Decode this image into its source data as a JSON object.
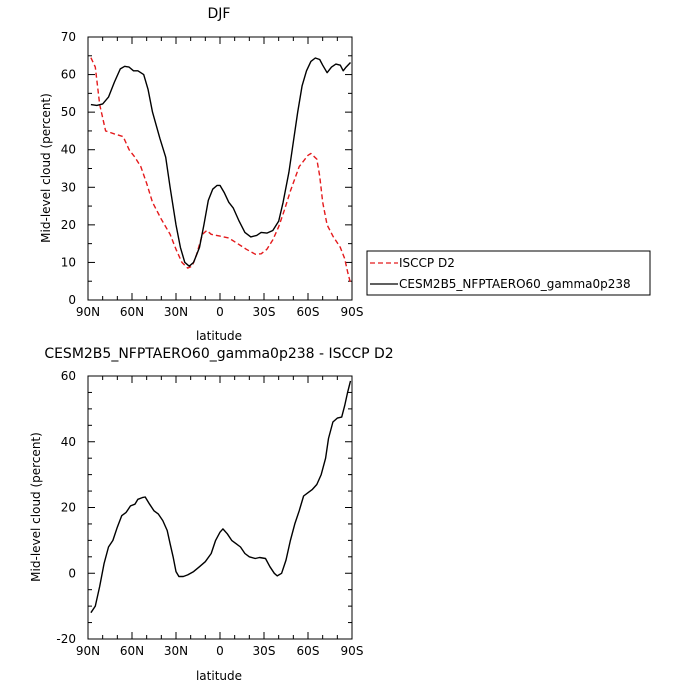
{
  "chart_data": [
    {
      "type": "line",
      "title": "DJF",
      "xlabel": "latitude",
      "ylabel": "Mid-level cloud (percent)",
      "xlim": [
        90,
        -90
      ],
      "ylim": [
        0,
        70
      ],
      "x_ticks": [
        {
          "value": 90,
          "label": "90N"
        },
        {
          "value": 60,
          "label": "60N"
        },
        {
          "value": 30,
          "label": "30N"
        },
        {
          "value": 0,
          "label": "0"
        },
        {
          "value": -30,
          "label": "30S"
        },
        {
          "value": -60,
          "label": "60S"
        },
        {
          "value": -90,
          "label": "90S"
        }
      ],
      "y_ticks": [
        0,
        10,
        20,
        30,
        40,
        50,
        60,
        70
      ],
      "legend_position": "right",
      "series": [
        {
          "name": "ISCCP D2",
          "color": "#e41a1c",
          "dash": "dashed",
          "points": [
            [
              88,
              64.5
            ],
            [
              85,
              62
            ],
            [
              82,
              52
            ],
            [
              78,
              45
            ],
            [
              72,
              44.2
            ],
            [
              66,
              43.5
            ],
            [
              62,
              40
            ],
            [
              58,
              38
            ],
            [
              54,
              35.5
            ],
            [
              50,
              31
            ],
            [
              46,
              26
            ],
            [
              40,
              21.5
            ],
            [
              34,
              17.5
            ],
            [
              30,
              13.5
            ],
            [
              26,
              10
            ],
            [
              22,
              8.5
            ],
            [
              19,
              9
            ],
            [
              16,
              12
            ],
            [
              12,
              17.5
            ],
            [
              9,
              18.5
            ],
            [
              6,
              17.5
            ],
            [
              0,
              17
            ],
            [
              -6,
              16.5
            ],
            [
              -12,
              15
            ],
            [
              -18,
              13.5
            ],
            [
              -24,
              12.2
            ],
            [
              -28,
              12.3
            ],
            [
              -32,
              13.5
            ],
            [
              -36,
              16
            ],
            [
              -40,
              19.5
            ],
            [
              -44,
              24
            ],
            [
              -48,
              29
            ],
            [
              -54,
              35.5
            ],
            [
              -60,
              38.5
            ],
            [
              -62,
              39
            ],
            [
              -66,
              37.5
            ],
            [
              -68,
              33
            ],
            [
              -70,
              26
            ],
            [
              -73,
              20
            ],
            [
              -77,
              17
            ],
            [
              -82,
              14
            ],
            [
              -85,
              11
            ],
            [
              -87,
              7.5
            ],
            [
              -89,
              4.5
            ]
          ]
        },
        {
          "name": "CESM2B5_NFPTAERO60_gamma0p238",
          "color": "#000000",
          "dash": "solid",
          "points": [
            [
              88,
              52
            ],
            [
              84,
              51.8
            ],
            [
              80,
              52.2
            ],
            [
              76,
              54
            ],
            [
              72,
              58
            ],
            [
              68,
              61.5
            ],
            [
              65,
              62.2
            ],
            [
              62,
              62
            ],
            [
              59,
              61
            ],
            [
              56,
              61
            ],
            [
              52,
              60
            ],
            [
              49,
              56
            ],
            [
              46,
              50
            ],
            [
              41,
              43
            ],
            [
              37,
              38
            ],
            [
              34,
              30
            ],
            [
              30,
              20
            ],
            [
              27,
              14
            ],
            [
              24,
              10
            ],
            [
              21,
              9
            ],
            [
              18,
              10
            ],
            [
              14,
              14
            ],
            [
              11,
              20
            ],
            [
              8,
              26.5
            ],
            [
              5,
              29.5
            ],
            [
              2,
              30.5
            ],
            [
              0,
              30.5
            ],
            [
              -3,
              28.5
            ],
            [
              -6,
              26
            ],
            [
              -9,
              24.5
            ],
            [
              -13,
              21
            ],
            [
              -17,
              18
            ],
            [
              -21,
              16.8
            ],
            [
              -25,
              17.2
            ],
            [
              -28,
              18
            ],
            [
              -32,
              17.8
            ],
            [
              -36,
              18.5
            ],
            [
              -40,
              21
            ],
            [
              -43,
              26
            ],
            [
              -47,
              34
            ],
            [
              -50,
              42
            ],
            [
              -53,
              50
            ],
            [
              -56,
              57
            ],
            [
              -59,
              61
            ],
            [
              -62,
              63.5
            ],
            [
              -65,
              64.4
            ],
            [
              -68,
              64
            ],
            [
              -70,
              62.5
            ],
            [
              -73,
              60.5
            ],
            [
              -76,
              62
            ],
            [
              -79,
              62.8
            ],
            [
              -82,
              62.5
            ],
            [
              -84,
              61
            ],
            [
              -86,
              62
            ],
            [
              -89,
              63.2
            ]
          ]
        }
      ]
    },
    {
      "type": "line",
      "title": "CESM2B5_NFPTAERO60_gamma0p238 - ISCCP D2",
      "xlabel": "latitude",
      "ylabel": "Mid-level cloud (percent)",
      "xlim": [
        90,
        -90
      ],
      "ylim": [
        -20,
        60
      ],
      "x_ticks": [
        {
          "value": 90,
          "label": "90N"
        },
        {
          "value": 60,
          "label": "60N"
        },
        {
          "value": 30,
          "label": "30N"
        },
        {
          "value": 0,
          "label": "0"
        },
        {
          "value": -30,
          "label": "30S"
        },
        {
          "value": -60,
          "label": "60S"
        },
        {
          "value": -90,
          "label": "90S"
        }
      ],
      "y_ticks": [
        -20,
        0,
        20,
        40,
        60
      ],
      "series": [
        {
          "name": "",
          "color": "#000000",
          "dash": "solid",
          "points": [
            [
              88,
              -12
            ],
            [
              85,
              -10
            ],
            [
              82,
              -4
            ],
            [
              79,
              3
            ],
            [
              76,
              8
            ],
            [
              73,
              10
            ],
            [
              70,
              14
            ],
            [
              67,
              17.5
            ],
            [
              64,
              18.5
            ],
            [
              61,
              20.5
            ],
            [
              58,
              21
            ],
            [
              56,
              22.5
            ],
            [
              53,
              23
            ],
            [
              51,
              23.2
            ],
            [
              48,
              21
            ],
            [
              45,
              19
            ],
            [
              42,
              18
            ],
            [
              39,
              16
            ],
            [
              36,
              13
            ],
            [
              34,
              9
            ],
            [
              32,
              5
            ],
            [
              30,
              0.5
            ],
            [
              28,
              -1
            ],
            [
              25,
              -1
            ],
            [
              22,
              -0.5
            ],
            [
              18,
              0.5
            ],
            [
              14,
              2
            ],
            [
              10,
              3.5
            ],
            [
              6,
              6
            ],
            [
              3,
              10
            ],
            [
              0,
              12.5
            ],
            [
              -2,
              13.5
            ],
            [
              -5,
              12
            ],
            [
              -8,
              10
            ],
            [
              -11,
              9
            ],
            [
              -14,
              8
            ],
            [
              -17,
              6
            ],
            [
              -20,
              5
            ],
            [
              -24,
              4.5
            ],
            [
              -27,
              4.8
            ],
            [
              -31,
              4.5
            ],
            [
              -34,
              2
            ],
            [
              -37,
              0
            ],
            [
              -39,
              -0.8
            ],
            [
              -42,
              0
            ],
            [
              -45,
              4
            ],
            [
              -48,
              10
            ],
            [
              -51,
              15
            ],
            [
              -54,
              19
            ],
            [
              -57,
              23.5
            ],
            [
              -60,
              24.5
            ],
            [
              -63,
              25.5
            ],
            [
              -66,
              27
            ],
            [
              -69,
              30
            ],
            [
              -72,
              35
            ],
            [
              -74,
              41
            ],
            [
              -77,
              46
            ],
            [
              -80,
              47.2
            ],
            [
              -83,
              47.5
            ],
            [
              -85,
              51
            ],
            [
              -87,
              55
            ],
            [
              -89,
              58.5
            ]
          ]
        }
      ]
    }
  ]
}
